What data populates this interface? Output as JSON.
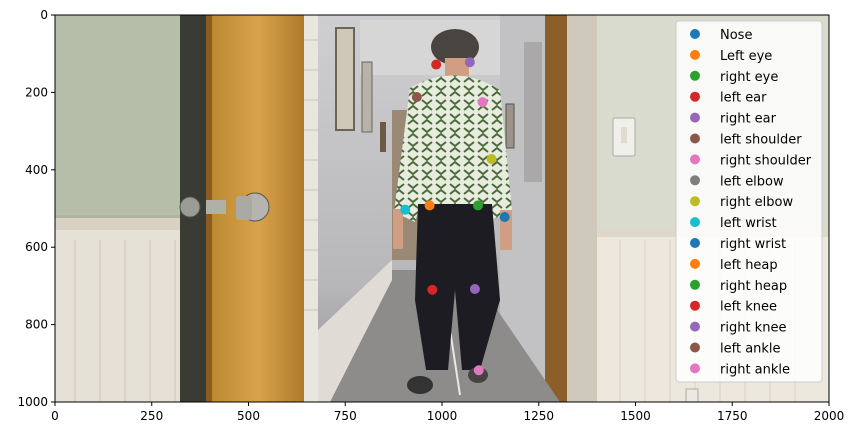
{
  "chart_data": {
    "type": "scatter",
    "title": "",
    "xlabel": "",
    "ylabel": "",
    "xlim": [
      0,
      2000
    ],
    "ylim": [
      1000,
      0
    ],
    "y_inverted": true,
    "grid": false,
    "legend_placement": "upper-right",
    "x_ticks": [
      0,
      250,
      500,
      750,
      1000,
      1250,
      1500,
      1750,
      2000
    ],
    "y_ticks": [
      0,
      200,
      400,
      600,
      800,
      1000
    ],
    "background_image": "hallway-photo-person-walking-away",
    "series": [
      {
        "name": "Nose",
        "color": "#1f77b4",
        "x": null,
        "y": null
      },
      {
        "name": "Left eye",
        "color": "#ff7f0e",
        "x": null,
        "y": null
      },
      {
        "name": "right eye",
        "color": "#2ca02c",
        "x": null,
        "y": null
      },
      {
        "name": "left ear",
        "color": "#d62728",
        "x": 985,
        "y": 128
      },
      {
        "name": "right ear",
        "color": "#9467bd",
        "x": 1072,
        "y": 122
      },
      {
        "name": "left shoulder",
        "color": "#8c564b",
        "x": 935,
        "y": 212
      },
      {
        "name": "right shoulder",
        "color": "#e377c2",
        "x": 1105,
        "y": 225
      },
      {
        "name": "left elbow",
        "color": "#7f7f7f",
        "x": null,
        "y": null
      },
      {
        "name": "right elbow",
        "color": "#bcbd22",
        "x": 1128,
        "y": 372
      },
      {
        "name": "left wrist",
        "color": "#17becf",
        "x": 905,
        "y": 503
      },
      {
        "name": "right wrist",
        "color": "#1f77b4",
        "x": 1162,
        "y": 522
      },
      {
        "name": "left heap",
        "color": "#ff7f0e",
        "x": 968,
        "y": 492
      },
      {
        "name": "right heap",
        "color": "#2ca02c",
        "x": 1093,
        "y": 492
      },
      {
        "name": "left knee",
        "color": "#d62728",
        "x": 975,
        "y": 710
      },
      {
        "name": "right knee",
        "color": "#9467bd",
        "x": 1085,
        "y": 708
      },
      {
        "name": "left ankle",
        "color": "#8c564b",
        "x": null,
        "y": null
      },
      {
        "name": "right ankle",
        "color": "#e377c2",
        "x": 1095,
        "y": 918
      }
    ]
  }
}
